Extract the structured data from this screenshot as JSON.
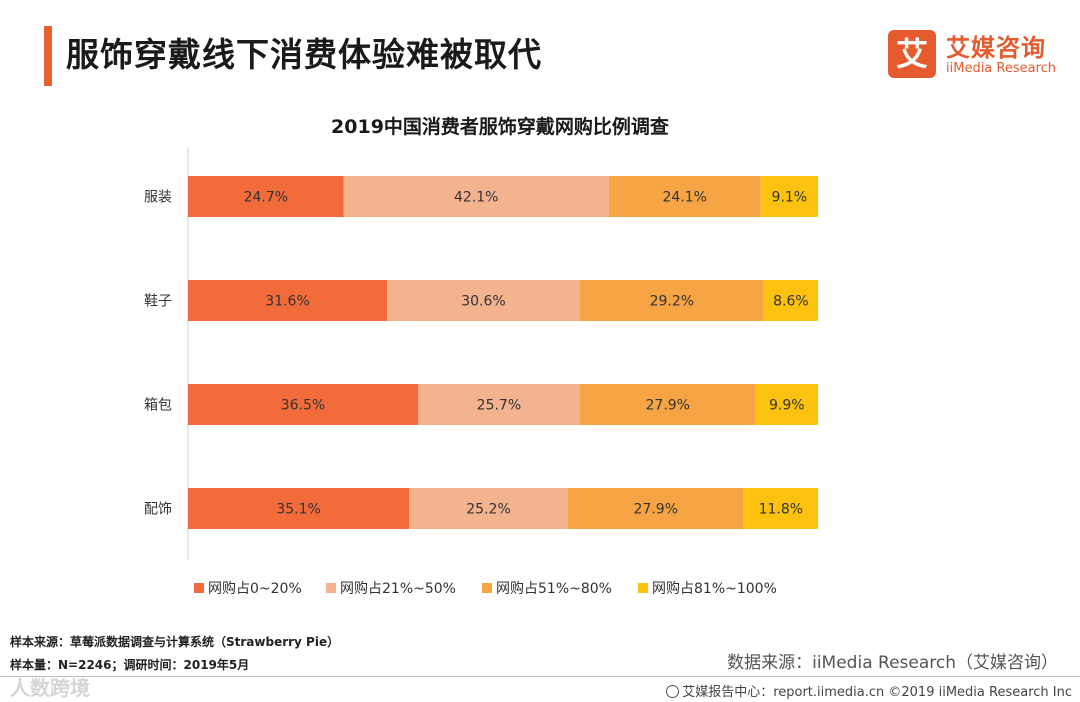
{
  "header": {
    "title": "服饰穿戴线下消费体验难被取代"
  },
  "logo": {
    "mark": "艾",
    "name_cn": "艾媒咨询",
    "name_en": "iiMedia Research"
  },
  "chart_data": {
    "type": "bar",
    "orientation": "horizontal",
    "stacked": true,
    "percent_stacked": true,
    "title": "2019中国消费者服饰穿戴网购比例调查",
    "categories": [
      "服装",
      "鞋子",
      "箱包",
      "配饰"
    ],
    "series": [
      {
        "name": "网购占0~20%",
        "color": "#f26b3a",
        "values": [
          24.7,
          31.6,
          36.5,
          35.1
        ]
      },
      {
        "name": "网购占21%~50%",
        "color": "#f2b38e",
        "values": [
          42.1,
          30.6,
          25.7,
          25.2
        ]
      },
      {
        "name": "网购占51%~80%",
        "color": "#f7a444",
        "values": [
          24.1,
          29.2,
          27.9,
          27.9
        ]
      },
      {
        "name": "网购占81%~100%",
        "color": "#fcc20f",
        "values": [
          9.1,
          8.6,
          9.9,
          11.8
        ]
      }
    ],
    "data_labels": [
      [
        "24.7%",
        "42.1%",
        "24.1%",
        "9.1%"
      ],
      [
        "31.6%",
        "30.6%",
        "29.2%",
        "8.6%"
      ],
      [
        "36.5%",
        "25.7%",
        "27.9%",
        "9.9%"
      ],
      [
        "35.1%",
        "25.2%",
        "27.9%",
        "11.8%"
      ]
    ],
    "xlim": [
      0,
      100
    ],
    "legend_position": "bottom",
    "grid": false
  },
  "footer": {
    "sample_source": "样本来源：草莓派数据调查与计算系统（Strawberry Pie）",
    "sample_size": "样本量：N=2246；调研时间：2019年5月",
    "data_source": "数据来源：iiMedia Research（艾媒咨询）",
    "report_center": "艾媒报告中心：report.iimedia.cn ©2019 iiMedia Research Inc",
    "watermark": "人数跨境"
  }
}
